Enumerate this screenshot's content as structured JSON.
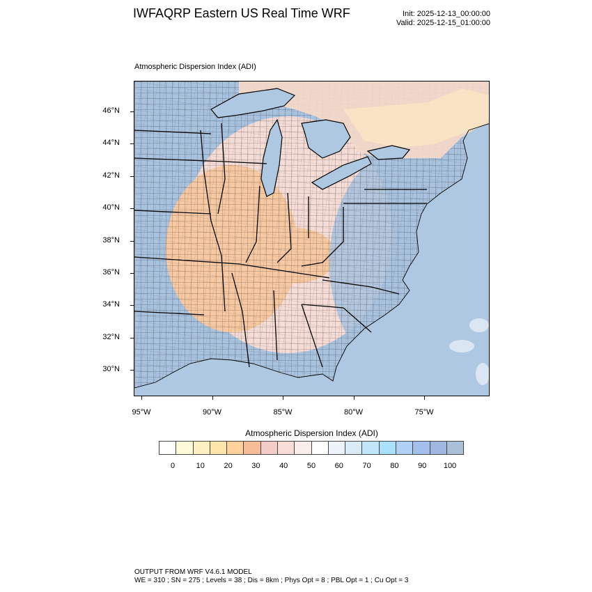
{
  "header": {
    "title": "IWFAQRP Eastern US Real Time WRF",
    "init": "Init: 2025-12-13_00:00:00",
    "valid": "Valid: 2025-12-15_01:00:00"
  },
  "map": {
    "subtitle": "Atmospheric Dispersion Index   (ADI)",
    "lat_labels": [
      "46°N",
      "44°N",
      "42°N",
      "40°N",
      "38°N",
      "36°N",
      "34°N",
      "32°N",
      "30°N"
    ],
    "lon_labels": [
      "95°W",
      "90°W",
      "85°W",
      "80°W",
      "75°W"
    ],
    "colors": {
      "ocean": "#adc8e0",
      "land_high": "#a9c3df",
      "land_mid": "#f6dcd6",
      "land_low": "#f7c9a2",
      "county_lines": "#000000"
    }
  },
  "colorbar": {
    "title": "Atmospheric Dispersion Index  (ADI)",
    "tick_labels": [
      "0",
      "10",
      "20",
      "30",
      "40",
      "50",
      "60",
      "70",
      "80",
      "90",
      "100"
    ],
    "colors": [
      "#ffffff",
      "#fffbd9",
      "#fff0c1",
      "#ffe5a9",
      "#fdd29c",
      "#f7bd98",
      "#f3ccc7",
      "#f8dcd8",
      "#fbeeea",
      "#ffffff",
      "#edf2fb",
      "#d9ebf7",
      "#c1e5f9",
      "#abe0fb",
      "#b0d1f5",
      "#a2c0eb",
      "#9fb7e0",
      "#a9c0d8"
    ]
  },
  "footer": {
    "line1": "OUTPUT FROM WRF V4.6.1 MODEL",
    "line2": "WE = 310 ; SN = 275 ; Levels = 38 ; Dis = 8km ; Phys Opt = 8 ; PBL Opt = 1 ; Cu Opt = 3"
  }
}
